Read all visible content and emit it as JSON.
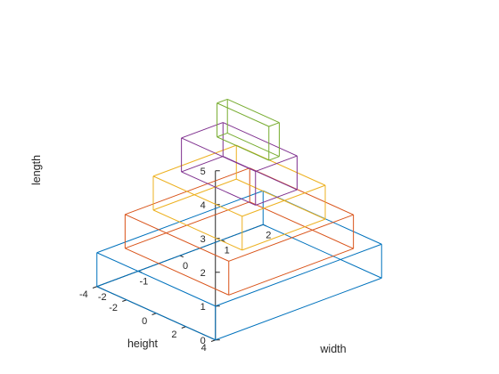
{
  "chart_data": {
    "type": "3d-box-wireframe",
    "title": "",
    "xlabel": "width",
    "ylabel": "height",
    "zlabel": "length",
    "xlim": [
      -2,
      2
    ],
    "ylim": [
      -4,
      4
    ],
    "zlim": [
      0,
      5
    ],
    "xticks": [
      "-2",
      "-1",
      "0",
      "1",
      "2"
    ],
    "yticks": [
      "-4",
      "-2",
      "0",
      "2",
      "4"
    ],
    "zticks": [
      "0",
      "1",
      "2",
      "3",
      "4",
      "5"
    ],
    "grid": false,
    "boxes": [
      {
        "color": "#0072BD",
        "x": [
          -2,
          2
        ],
        "y": [
          -4,
          4
        ],
        "z": [
          0,
          1
        ]
      },
      {
        "color": "#D95319",
        "x": [
          -1.5,
          1.5
        ],
        "y": [
          -3.5,
          3.5
        ],
        "z": [
          1,
          2
        ]
      },
      {
        "color": "#EDB120",
        "x": [
          -1,
          1
        ],
        "y": [
          -3,
          3
        ],
        "z": [
          2,
          3
        ]
      },
      {
        "color": "#7E2F8E",
        "x": [
          -0.5,
          0.5
        ],
        "y": [
          -2.5,
          2.5
        ],
        "z": [
          3,
          4
        ]
      },
      {
        "color": "#77AC30",
        "x": [
          0,
          0.25
        ],
        "y": [
          -1.5,
          2
        ],
        "z": [
          4,
          5
        ]
      }
    ]
  }
}
